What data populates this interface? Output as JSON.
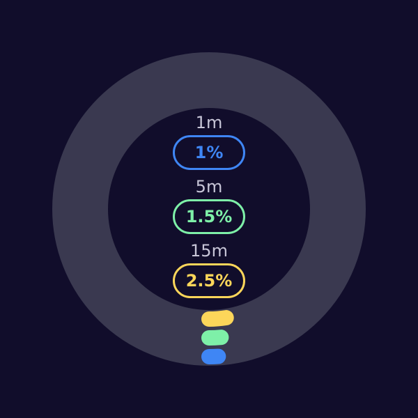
{
  "colors": {
    "background": "#110d2b",
    "track": "#3a3950",
    "label": "#c8c6d8",
    "one_minute": "#3f86f5",
    "five_minute": "#7ef0a8",
    "fifteen_minute": "#fcd65a"
  },
  "load": {
    "metrics": [
      {
        "label": "1m",
        "value": "1%",
        "fraction": 0.01,
        "color": "#3f86f5"
      },
      {
        "label": "5m",
        "value": "1.5%",
        "fraction": 0.015,
        "color": "#7ef0a8"
      },
      {
        "label": "15m",
        "value": "2.5%",
        "fraction": 0.025,
        "color": "#fcd65a"
      }
    ]
  }
}
